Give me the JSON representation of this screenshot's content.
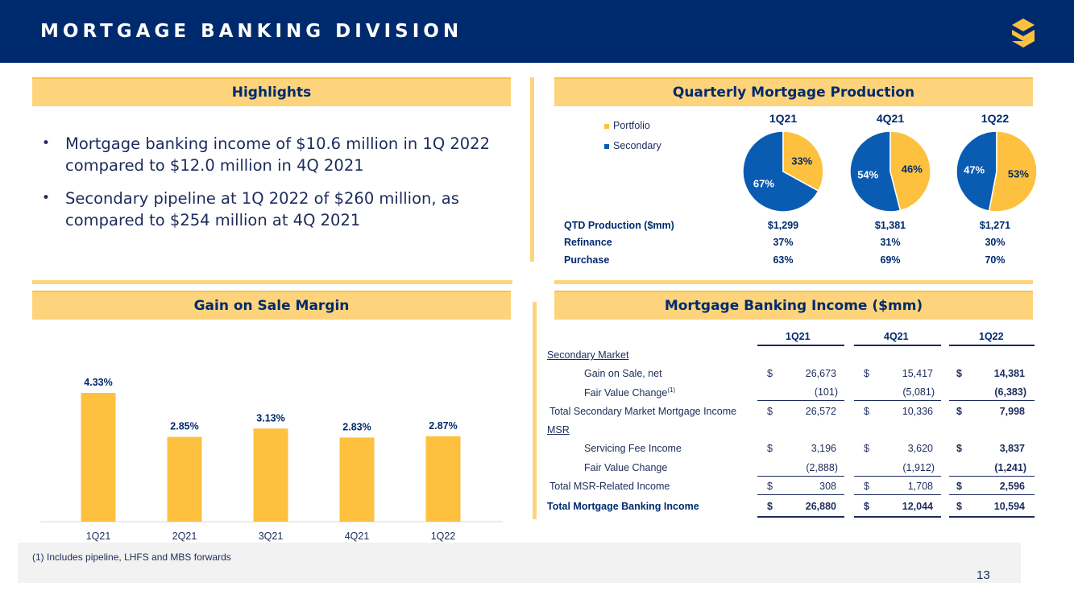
{
  "header": {
    "title": "MORTGAGE BANKING DIVISION"
  },
  "highlights": {
    "title": "Highlights",
    "bullets": [
      "Mortgage banking income of $10.6 million in 1Q 2022 compared to $12.0 million in 4Q 2021",
      "Secondary pipeline at 1Q 2022 of $260 million, as compared to $254 million at 4Q 2021"
    ]
  },
  "production": {
    "title": "Quarterly Mortgage Production",
    "legend": [
      {
        "label": "Portfolio",
        "color": "#fdc13f"
      },
      {
        "label": "Secondary",
        "color": "#0a5cb3"
      }
    ],
    "quarters": [
      "1Q21",
      "4Q21",
      "1Q22"
    ],
    "pies": [
      {
        "portfolio": 33,
        "secondary": 67,
        "portfolio_label": "33%",
        "secondary_label": "67%"
      },
      {
        "portfolio": 46,
        "secondary": 54,
        "portfolio_label": "46%",
        "secondary_label": "54%"
      },
      {
        "portfolio": 53,
        "secondary": 47,
        "portfolio_label": "53%",
        "secondary_label": "47%"
      }
    ],
    "rows": [
      {
        "label": "QTD Production ($mm)",
        "values": [
          "$1,299",
          "$1,381",
          "$1,271"
        ]
      },
      {
        "label": "Refinance",
        "values": [
          "37%",
          "31%",
          "30%"
        ]
      },
      {
        "label": "Purchase",
        "values": [
          "63%",
          "69%",
          "70%"
        ]
      }
    ]
  },
  "gain_on_sale": {
    "title": "Gain on Sale Margin"
  },
  "chart_data": {
    "type": "bar",
    "categories": [
      "1Q21",
      "2Q21",
      "3Q21",
      "4Q21",
      "1Q22"
    ],
    "values": [
      4.33,
      2.85,
      3.13,
      2.83,
      2.87
    ],
    "labels": [
      "4.33%",
      "2.85%",
      "3.13%",
      "2.83%",
      "2.87%"
    ],
    "ylim": [
      0,
      4.6
    ],
    "color": "#fdc13f",
    "grid": false
  },
  "income": {
    "title": "Mortgage Banking Income ($mm)",
    "columns": [
      "1Q21",
      "4Q21",
      "1Q22"
    ],
    "secondary_header": "Secondary Market",
    "msr_header": "MSR",
    "rows": {
      "gain_on_sale": {
        "label": "Gain on Sale, net",
        "values": [
          "26,673",
          "15,417",
          "14,381"
        ]
      },
      "fv_change": {
        "label": "Fair Value Change",
        "sup": "(1)",
        "values": [
          "(101)",
          "(5,081)",
          "(6,383)"
        ]
      },
      "total_secondary": {
        "label": "Total Secondary Market Mortgage Income",
        "values": [
          "26,572",
          "10,336",
          "7,998"
        ]
      },
      "servicing": {
        "label": "Servicing Fee Income",
        "values": [
          "3,196",
          "3,620",
          "3,837"
        ]
      },
      "msr_fv": {
        "label": "Fair Value Change",
        "values": [
          "(2,888)",
          "(1,912)",
          "(1,241)"
        ]
      },
      "total_msr": {
        "label": "Total MSR-Related Income",
        "values": [
          "308",
          "1,708",
          "2,596"
        ]
      },
      "total": {
        "label": "Total Mortgage Banking Income",
        "values": [
          "26,880",
          "12,044",
          "10,594"
        ]
      }
    },
    "dollar": "$"
  },
  "footnote": "(1)   Includes pipeline, LHFS and MBS forwards",
  "page_number": "13"
}
